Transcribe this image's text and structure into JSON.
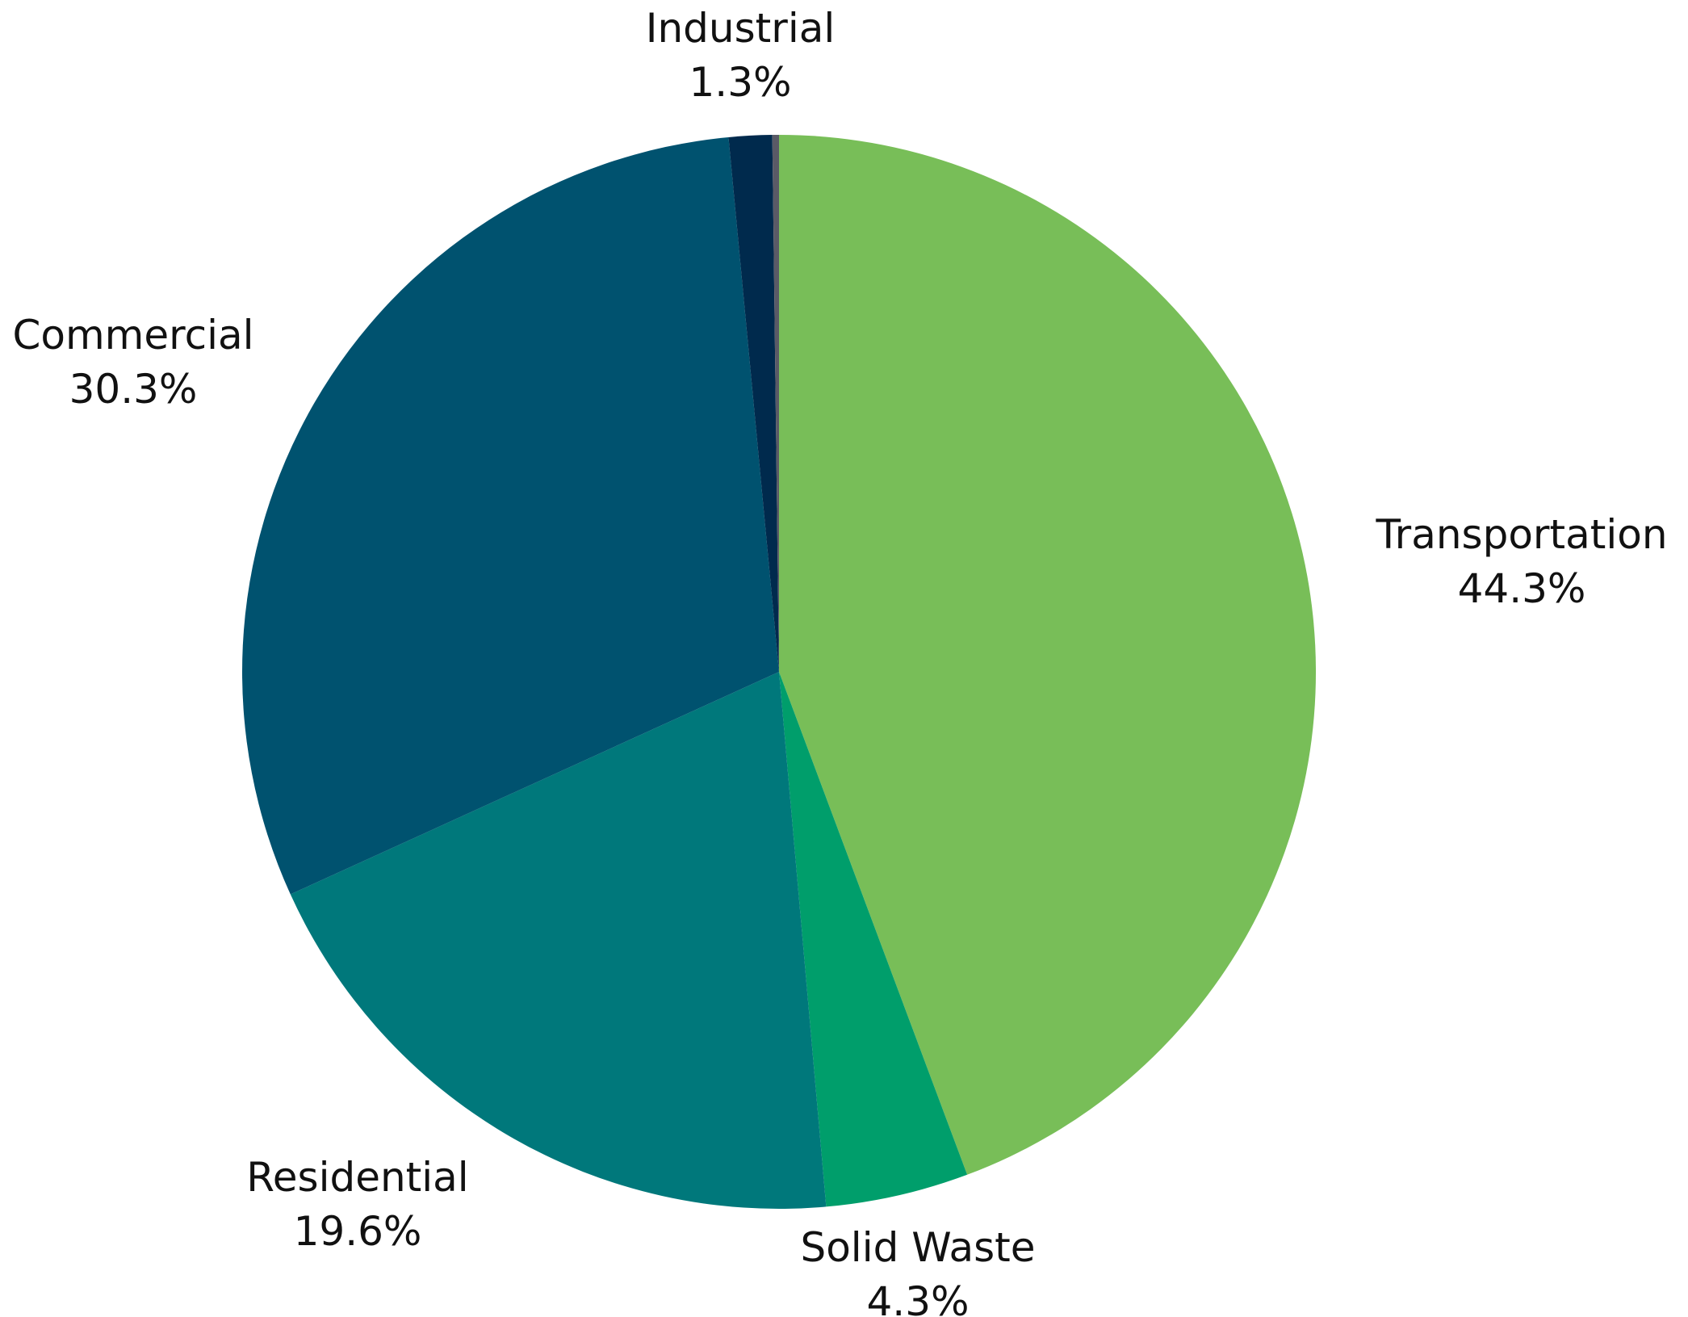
{
  "chart_data": {
    "type": "pie",
    "start_angle": "12 o'clock",
    "direction": "clockwise",
    "legend": "none",
    "slices": [
      {
        "label": "Transportation",
        "value": 44.3,
        "value_label": "44.3%",
        "color": "#78BE58"
      },
      {
        "label": "Solid Waste",
        "value": 4.3,
        "value_label": "4.3%",
        "color": "#009E6B"
      },
      {
        "label": "Residential",
        "value": 19.6,
        "value_label": "19.6%",
        "color": "#00787B"
      },
      {
        "label": "Commercial",
        "value": 30.3,
        "value_label": "30.3%",
        "color": "#00526F"
      },
      {
        "label": "Industrial",
        "value": 1.3,
        "value_label": "1.3%",
        "color": "#002A4D"
      },
      {
        "label": "",
        "value": 0.2,
        "value_label": "",
        "color": "#5A5A66"
      }
    ]
  }
}
